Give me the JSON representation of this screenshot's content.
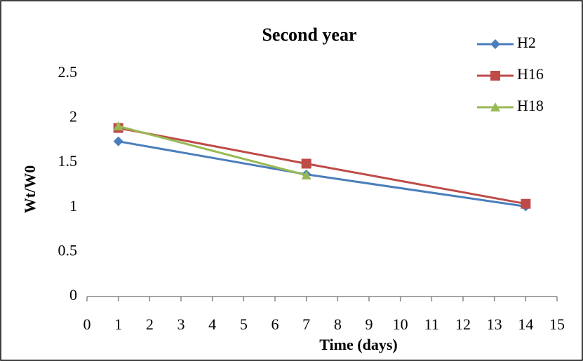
{
  "chart_data": {
    "type": "line",
    "title": "Second year",
    "x_label": "Time (days)",
    "y_label": "Wt/W0",
    "x": [
      1,
      7,
      14
    ],
    "series": [
      {
        "name": "H2",
        "color": "#4a7ebb",
        "marker": "diamond",
        "values": [
          1.74,
          1.37,
          1.01
        ]
      },
      {
        "name": "H16",
        "color": "#be4b48",
        "marker": "square",
        "values": [
          1.89,
          1.49,
          1.04
        ]
      },
      {
        "name": "H18",
        "color": "#98b954",
        "marker": "triangle",
        "values": [
          1.91,
          1.36,
          null
        ]
      }
    ],
    "xlim": [
      0,
      15
    ],
    "xticks": [
      0,
      1,
      2,
      3,
      4,
      5,
      6,
      7,
      8,
      9,
      10,
      11,
      12,
      13,
      14,
      15
    ],
    "ylim": [
      0,
      2.5
    ],
    "yticks": [
      0,
      0.5,
      1,
      1.5,
      2,
      2.5
    ],
    "grid": false,
    "legend": "top-right"
  }
}
